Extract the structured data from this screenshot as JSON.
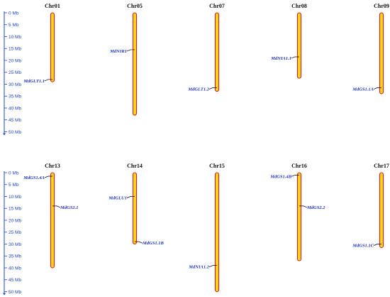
{
  "scale": {
    "unit": "Mb",
    "ticks": [
      "0 Mb",
      "5 Mb",
      "10 Mb",
      "15 Mb",
      "20 Mb",
      "25 Mb",
      "30 Mb",
      "35 Mb",
      "40 Mb",
      "45 Mb",
      "50 Mb"
    ],
    "tick_values": [
      0,
      5,
      10,
      15,
      20,
      25,
      30,
      35,
      40,
      45,
      50
    ]
  },
  "colors": {
    "chromosome_fill": "#ffd21f",
    "chromosome_outline": "#d81f1f",
    "axis": "#2244cc",
    "gene_label": "#2233bb",
    "marker_line": "#000000"
  },
  "rows": [
    {
      "chromosomes": [
        {
          "name": "Chr01",
          "length_mb": 29,
          "genes": [
            {
              "label": "MdGLT1.1",
              "pos_mb": 28,
              "side": "left"
            }
          ]
        },
        {
          "name": "Chr05",
          "length_mb": 43,
          "genes": [
            {
              "label": "MdNIR1",
              "pos_mb": 15.5,
              "side": "left"
            }
          ]
        },
        {
          "name": "Chr07",
          "length_mb": 33,
          "genes": [
            {
              "label": "MdGLT1.2",
              "pos_mb": 31.5,
              "side": "left"
            }
          ]
        },
        {
          "name": "Chr08",
          "length_mb": 27.5,
          "genes": [
            {
              "label": "MdNIA1.1",
              "pos_mb": 18.5,
              "side": "left"
            }
          ]
        },
        {
          "name": "Chr09",
          "length_mb": 34,
          "genes": [
            {
              "label": "MdGS1.1A",
              "pos_mb": 31.5,
              "side": "left"
            }
          ]
        }
      ]
    },
    {
      "chromosomes": [
        {
          "name": "Chr13",
          "length_mb": 40,
          "genes": [
            {
              "label": "MdGS1.4A",
              "pos_mb": 1.5,
              "side": "left"
            },
            {
              "label": "MdGS2.1",
              "pos_mb": 14,
              "side": "right"
            }
          ]
        },
        {
          "name": "Chr14",
          "length_mb": 30,
          "genes": [
            {
              "label": "MdGLU1",
              "pos_mb": 10,
              "side": "left"
            },
            {
              "label": "MdGS1.1B",
              "pos_mb": 29,
              "side": "right"
            }
          ]
        },
        {
          "name": "Chr15",
          "length_mb": 50,
          "genes": [
            {
              "label": "MdNIA1.2",
              "pos_mb": 39,
              "side": "left"
            }
          ]
        },
        {
          "name": "Chr16",
          "length_mb": 37,
          "genes": [
            {
              "label": "MdGS1.4B",
              "pos_mb": 1,
              "side": "left"
            },
            {
              "label": "MdGS2.2",
              "pos_mb": 14,
              "side": "right"
            }
          ]
        },
        {
          "name": "Chr17",
          "length_mb": 31.5,
          "genes": [
            {
              "label": "MdGS1.1C",
              "pos_mb": 30,
              "side": "left"
            }
          ]
        }
      ]
    }
  ]
}
